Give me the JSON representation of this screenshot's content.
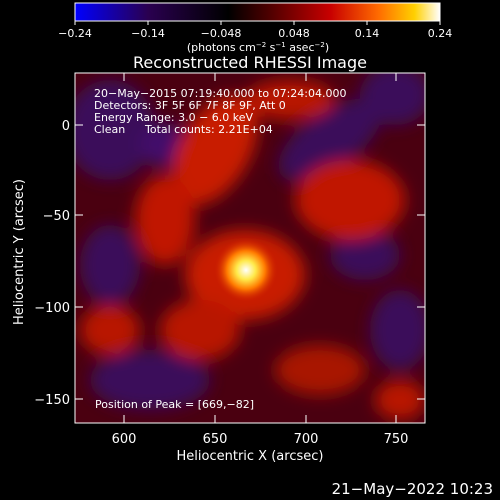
{
  "colorbar": {
    "ticks": [
      "−0.24",
      "−0.14",
      "−0.048",
      "0.048",
      "0.14",
      "0.24"
    ],
    "units_prefix": "(photons cm",
    "units_exp1": "−2",
    "units_mid": " s",
    "units_exp2": "−1",
    "units_mid2": " asec",
    "units_exp3": "−2",
    "units_suffix": ")",
    "colormap": [
      "#0000ff",
      "#2a0050",
      "#000000",
      "#5a0000",
      "#c80000",
      "#ff6a00",
      "#ffd000",
      "#ffffff"
    ]
  },
  "chart_data": {
    "type": "heatmap",
    "title": "Reconstructed RHESSI Image",
    "xlabel": "Heliocentric X (arcsec)",
    "ylabel": "Heliocentric Y (arcsec)",
    "xlim": [
      573,
      766
    ],
    "ylim": [
      -165,
      20
    ],
    "x_ticks": [
      600,
      650,
      700,
      750
    ],
    "y_ticks": [
      0,
      -50,
      -100,
      -150
    ],
    "x_tick_labels": [
      "600",
      "650",
      "700",
      "750"
    ],
    "y_tick_labels": [
      "0",
      "−50",
      "−100",
      "−150"
    ],
    "color_range": [
      -0.24,
      0.24
    ],
    "peak": {
      "x": 669,
      "y": -82
    },
    "annotations": {
      "time": "20−May−2015 07:19:40.000 to 07:24:04.000",
      "detectors": "Detectors: 3F 5F 6F 7F 8F 9F, Att 0",
      "energy": "Energy Range: 3.0 − 6.0 keV",
      "clean": "Clean",
      "counts": "Total counts: 2.21E+04",
      "peak_text": "Position of Peak = [669,−82]"
    }
  },
  "footer": {
    "date": "21−May−2022 10:23"
  }
}
